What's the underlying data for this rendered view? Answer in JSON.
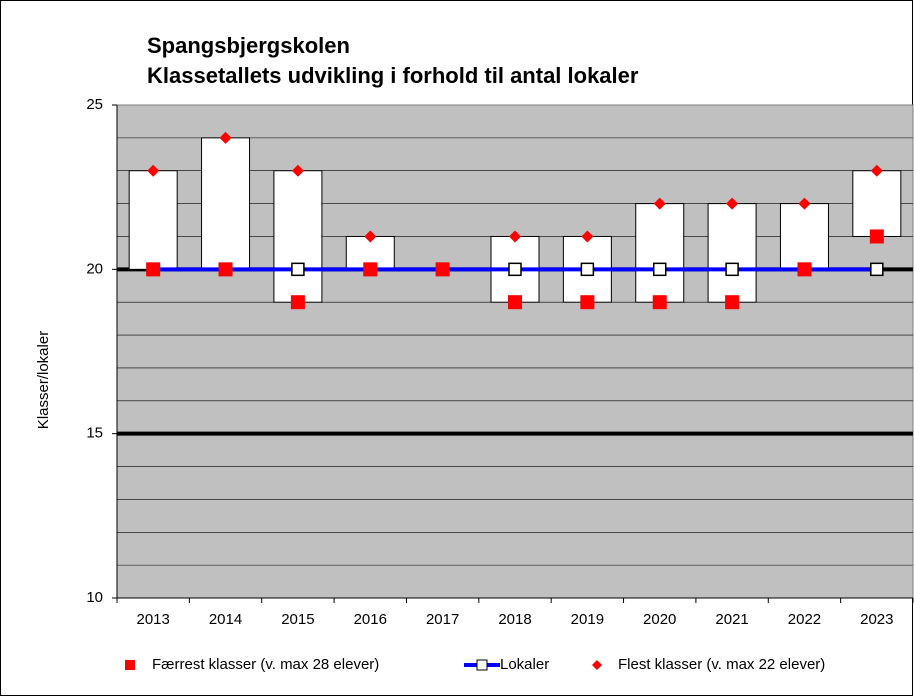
{
  "chart_data": {
    "type": "updown",
    "title": [
      "Spangsbjergskolen",
      "Klassetallets udvikling i forhold til antal lokaler"
    ],
    "y_label": "Klasser/lokaler",
    "categories": [
      "2013",
      "2014",
      "2015",
      "2016",
      "2017",
      "2018",
      "2019",
      "2020",
      "2021",
      "2022",
      "2023"
    ],
    "series": [
      {
        "name": "Færrest klasser (v. max 28 elever)",
        "color": "#ff0000",
        "marker": "square",
        "values": [
          20,
          20,
          19,
          20,
          20,
          19,
          19,
          19,
          19,
          20,
          21
        ]
      },
      {
        "name": "Lokaler",
        "color": "#0000ff",
        "marker": "line",
        "values": [
          20,
          20,
          20,
          20,
          20,
          20,
          20,
          20,
          20,
          20,
          20
        ]
      },
      {
        "name": "Flest klasser (v. max 22 elever)",
        "color": "#ff0000",
        "marker": "diamond",
        "values": [
          23,
          24,
          23,
          21,
          20,
          21,
          21,
          22,
          22,
          22,
          23
        ]
      }
    ],
    "ylim": [
      10,
      25
    ],
    "yticks": [
      10,
      15,
      20,
      25
    ],
    "minor_yticks": [
      11,
      12,
      13,
      14,
      16,
      17,
      18,
      19,
      21,
      22,
      23,
      24
    ],
    "grid": true,
    "legend": "bottom"
  }
}
